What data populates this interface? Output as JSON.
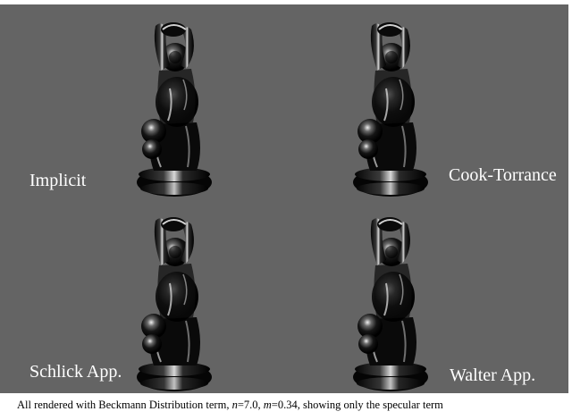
{
  "figure": {
    "background": "#646464",
    "panels": [
      {
        "label": "Implicit"
      },
      {
        "label": "Cook-Torrance"
      },
      {
        "label": "Schlick App."
      },
      {
        "label": "Walter App."
      }
    ]
  },
  "caption": {
    "prefix": "All rendered with Beckmann Distribution term, ",
    "n_var": "n",
    "n_val": "=7.0, ",
    "m_var": "m",
    "m_val": "=0.34, showing only the specular term"
  }
}
